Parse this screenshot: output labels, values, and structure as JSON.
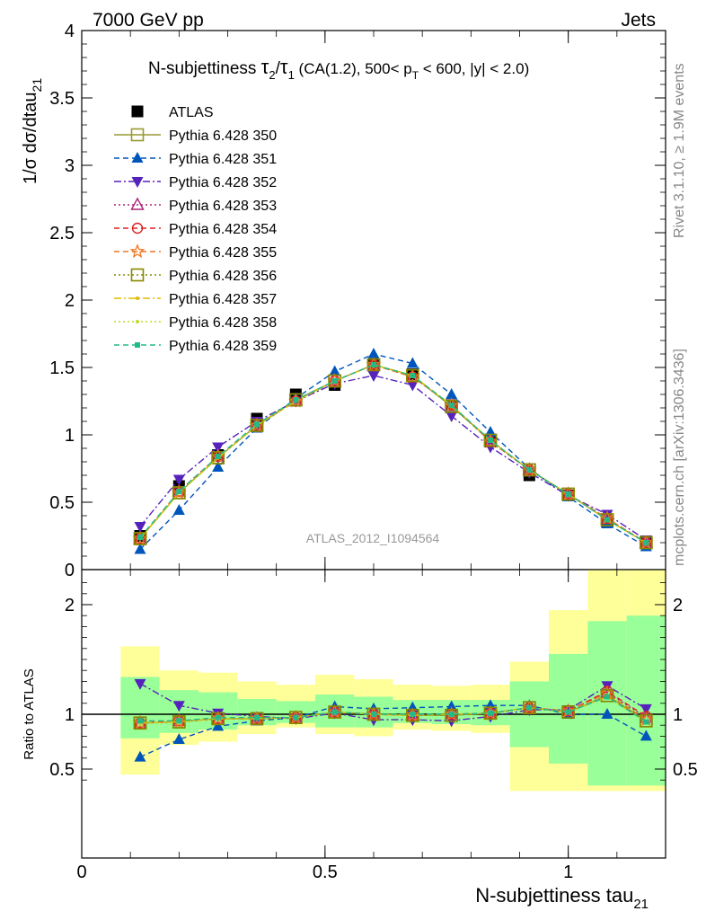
{
  "header": {
    "left_label": "7000 GeV pp",
    "right_label": "Jets"
  },
  "side_labels": {
    "rivet": "Rivet 3.1.10, ≥ 1.9M events",
    "mcplots": "mcplots.cern.ch [arXiv:1306.3436]"
  },
  "watermark": "ATLAS_2012_I1094564",
  "colors": {
    "band_outer": "#ffff99",
    "band_inner": "#99ff99",
    "axis": "#000000",
    "side_text": "#888888"
  },
  "chart_data": [
    {
      "type": "line",
      "panel": "main",
      "title": "N-subjettiness τ2/τ1 (CA(1.2), 500< pT < 600, |y| < 2.0)",
      "title_parts": {
        "prefix": "N-subjettiness ",
        "tau": "τ",
        "sub_2": "2",
        "slash": "/",
        "sub_1": "1",
        "cond_a": " (CA(1.2), 500< p",
        "sub_T": "T",
        "cond_b": " < 600, |y| < 2.0)"
      },
      "ylabel": "1/σ dσ/dtau21",
      "ylabel_parts": {
        "main": "1/σ dσ/dtau",
        "sub": "21"
      },
      "xlim": [
        0,
        1.2
      ],
      "ylim": [
        0,
        4
      ],
      "yticks": [
        0,
        0.5,
        1,
        1.5,
        2,
        2.5,
        3,
        3.5,
        4
      ],
      "ytick_labels": [
        "0",
        "0.5",
        "1",
        "1.5",
        "2",
        "2.5",
        "3",
        "3.5",
        "4"
      ],
      "legend_position": "top-left",
      "x": [
        0.12,
        0.2,
        0.28,
        0.36,
        0.44,
        0.52,
        0.6,
        0.68,
        0.76,
        0.84,
        0.92,
        1.0,
        1.08,
        1.16
      ],
      "series": [
        {
          "name": "ATLAS",
          "style": "data",
          "color": "#000000",
          "marker": "filled-square",
          "values": [
            0.25,
            0.62,
            0.85,
            1.12,
            1.3,
            1.37,
            1.52,
            1.45,
            1.22,
            0.95,
            0.7,
            0.55,
            0.35,
            0.21
          ]
        },
        {
          "name": "Pythia 6.428 350",
          "style": "solid",
          "color": "#999933",
          "marker": "open-square",
          "values": [
            0.23,
            0.57,
            0.83,
            1.07,
            1.26,
            1.4,
            1.52,
            1.44,
            1.21,
            0.96,
            0.74,
            0.56,
            0.37,
            0.2
          ]
        },
        {
          "name": "Pythia 6.428 351",
          "style": "dash",
          "color": "#0055bb",
          "marker": "filled-triangle-up",
          "values": [
            0.15,
            0.44,
            0.76,
            1.05,
            1.27,
            1.47,
            1.6,
            1.53,
            1.3,
            1.02,
            0.75,
            0.54,
            0.34,
            0.17
          ]
        },
        {
          "name": "Pythia 6.428 352",
          "style": "dashdot",
          "color": "#5522bb",
          "marker": "filled-triangle-down",
          "values": [
            0.32,
            0.67,
            0.91,
            1.1,
            1.25,
            1.38,
            1.44,
            1.37,
            1.14,
            0.91,
            0.72,
            0.55,
            0.41,
            0.22
          ]
        },
        {
          "name": "Pythia 6.428 353",
          "style": "dot",
          "color": "#aa2277",
          "marker": "open-triangle-up",
          "values": [
            0.23,
            0.58,
            0.84,
            1.07,
            1.25,
            1.4,
            1.52,
            1.43,
            1.22,
            0.95,
            0.74,
            0.56,
            0.38,
            0.2
          ]
        },
        {
          "name": "Pythia 6.428 354",
          "style": "dash",
          "color": "#dd2222",
          "marker": "open-circle",
          "values": [
            0.23,
            0.58,
            0.84,
            1.07,
            1.25,
            1.4,
            1.52,
            1.43,
            1.22,
            0.95,
            0.74,
            0.56,
            0.38,
            0.2
          ]
        },
        {
          "name": "Pythia 6.428 355",
          "style": "dash",
          "color": "#ee7722",
          "marker": "open-star",
          "values": [
            0.23,
            0.57,
            0.84,
            1.07,
            1.25,
            1.4,
            1.52,
            1.43,
            1.22,
            0.95,
            0.74,
            0.56,
            0.38,
            0.2
          ]
        },
        {
          "name": "Pythia 6.428 356",
          "style": "dot",
          "color": "#888800",
          "marker": "open-square",
          "values": [
            0.23,
            0.57,
            0.83,
            1.07,
            1.26,
            1.4,
            1.52,
            1.44,
            1.21,
            0.96,
            0.74,
            0.56,
            0.37,
            0.2
          ]
        },
        {
          "name": "Pythia 6.428 357",
          "style": "dashdot",
          "color": "#ddbb00",
          "marker": "small-dot",
          "values": [
            0.23,
            0.57,
            0.83,
            1.07,
            1.25,
            1.4,
            1.52,
            1.44,
            1.22,
            0.96,
            0.74,
            0.56,
            0.37,
            0.2
          ]
        },
        {
          "name": "Pythia 6.428 358",
          "style": "dot",
          "color": "#bbdd22",
          "marker": "small-dot",
          "values": [
            0.23,
            0.57,
            0.83,
            1.07,
            1.25,
            1.4,
            1.52,
            1.44,
            1.22,
            0.96,
            0.74,
            0.56,
            0.37,
            0.2
          ]
        },
        {
          "name": "Pythia 6.428 359",
          "style": "dash",
          "color": "#22bb88",
          "marker": "small-filled-square",
          "values": [
            0.24,
            0.58,
            0.84,
            1.08,
            1.26,
            1.4,
            1.52,
            1.44,
            1.22,
            0.96,
            0.74,
            0.56,
            0.37,
            0.2
          ]
        }
      ]
    },
    {
      "type": "line",
      "panel": "ratio",
      "ylabel": "Ratio to ATLAS",
      "xlabel": "N-subjettiness tau21",
      "xlabel_parts": {
        "main": "N-subjettiness tau",
        "sub": "21"
      },
      "xlim": [
        0,
        1.2
      ],
      "ylim": [
        0.35,
        2.25
      ],
      "xticks": [
        0,
        0.5,
        1
      ],
      "xtick_labels": [
        "0",
        "0.5",
        "1"
      ],
      "yticks": [
        0.5,
        1,
        2
      ],
      "ytick_labels": [
        "0.5",
        "1",
        "2"
      ],
      "bin_edges": [
        0.08,
        0.16,
        0.24,
        0.32,
        0.4,
        0.48,
        0.56,
        0.64,
        0.72,
        0.8,
        0.88,
        0.96,
        1.04,
        1.12,
        1.2
      ],
      "band_outer": {
        "low": [
          0.45,
          0.72,
          0.75,
          0.82,
          0.88,
          0.82,
          0.8,
          0.86,
          0.85,
          0.83,
          0.3,
          0.3,
          0.3,
          0.3
        ],
        "high": [
          1.62,
          1.4,
          1.38,
          1.3,
          1.27,
          1.36,
          1.32,
          1.27,
          1.26,
          1.27,
          1.48,
          1.95,
          2.5,
          2.5
        ]
      },
      "band_inner": {
        "low": [
          0.78,
          0.83,
          0.86,
          0.9,
          0.92,
          0.88,
          0.88,
          0.92,
          0.91,
          0.9,
          0.7,
          0.55,
          0.35,
          0.35
        ],
        "high": [
          1.34,
          1.22,
          1.2,
          1.14,
          1.12,
          1.18,
          1.16,
          1.13,
          1.13,
          1.13,
          1.3,
          1.55,
          1.85,
          1.9
        ]
      },
      "x": [
        0.12,
        0.2,
        0.28,
        0.36,
        0.44,
        0.52,
        0.6,
        0.68,
        0.76,
        0.84,
        0.92,
        1.0,
        1.08,
        1.16
      ],
      "series": [
        {
          "name": "Pythia 6.428 350",
          "style": "solid",
          "color": "#999933",
          "marker": "open-square",
          "values": [
            0.92,
            0.93,
            0.96,
            0.96,
            0.97,
            1.02,
            1.0,
            0.99,
            0.99,
            1.01,
            1.06,
            1.02,
            1.17,
            0.94
          ]
        },
        {
          "name": "Pythia 6.428 351",
          "style": "dash",
          "color": "#0055bb",
          "marker": "filled-triangle-up",
          "values": [
            0.61,
            0.77,
            0.89,
            0.94,
            0.97,
            1.07,
            1.05,
            1.06,
            1.07,
            1.08,
            1.08,
            1.0,
            1.0,
            0.8
          ]
        },
        {
          "name": "Pythia 6.428 352",
          "style": "dashdot",
          "color": "#5522bb",
          "marker": "filled-triangle-down",
          "values": [
            1.28,
            1.08,
            1.01,
            0.98,
            0.96,
            1.01,
            0.95,
            0.95,
            0.94,
            0.98,
            1.04,
            1.04,
            1.26,
            1.05
          ]
        },
        {
          "name": "Pythia 6.428 353",
          "style": "dot",
          "color": "#aa2277",
          "marker": "open-triangle-up",
          "values": [
            0.92,
            0.94,
            0.96,
            0.96,
            0.97,
            1.02,
            1.0,
            0.99,
            1.0,
            1.01,
            1.06,
            1.03,
            1.2,
            0.97
          ]
        },
        {
          "name": "Pythia 6.428 354",
          "style": "dash",
          "color": "#dd2222",
          "marker": "open-circle",
          "values": [
            0.92,
            0.94,
            0.96,
            0.96,
            0.97,
            1.02,
            1.0,
            0.99,
            1.0,
            1.01,
            1.06,
            1.03,
            1.21,
            0.98
          ]
        },
        {
          "name": "Pythia 6.428 355",
          "style": "dash",
          "color": "#ee7722",
          "marker": "open-star",
          "values": [
            0.92,
            0.93,
            0.96,
            0.96,
            0.97,
            1.02,
            1.0,
            0.99,
            1.0,
            1.01,
            1.06,
            1.03,
            1.19,
            0.95
          ]
        },
        {
          "name": "Pythia 6.428 356",
          "style": "dot",
          "color": "#888800",
          "marker": "open-square",
          "values": [
            0.92,
            0.93,
            0.96,
            0.96,
            0.97,
            1.02,
            1.0,
            0.99,
            0.99,
            1.01,
            1.06,
            1.02,
            1.17,
            0.94
          ]
        },
        {
          "name": "Pythia 6.428 357",
          "style": "dashdot",
          "color": "#ddbb00",
          "marker": "small-dot",
          "values": [
            0.92,
            0.93,
            0.96,
            0.96,
            0.97,
            1.02,
            1.0,
            0.99,
            1.0,
            1.01,
            1.06,
            1.02,
            1.16,
            0.93
          ]
        },
        {
          "name": "Pythia 6.428 358",
          "style": "dot",
          "color": "#bbdd22",
          "marker": "small-dot",
          "values": [
            0.92,
            0.93,
            0.96,
            0.96,
            0.97,
            1.02,
            1.0,
            0.99,
            1.0,
            1.01,
            1.06,
            1.02,
            1.16,
            0.93
          ]
        },
        {
          "name": "Pythia 6.428 359",
          "style": "dash",
          "color": "#22bb88",
          "marker": "small-filled-square",
          "values": [
            0.94,
            0.94,
            0.97,
            0.97,
            0.97,
            1.02,
            1.0,
            1.0,
            1.0,
            1.01,
            1.06,
            1.02,
            1.16,
            0.93
          ]
        }
      ]
    }
  ]
}
